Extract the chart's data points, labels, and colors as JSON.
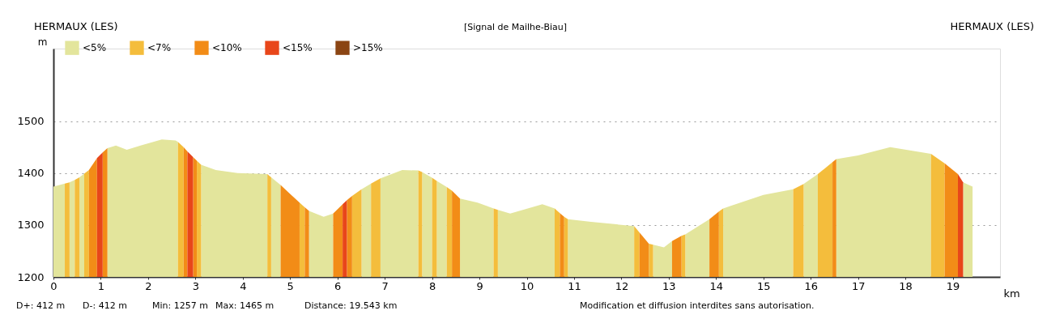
{
  "chart_data": {
    "type": "area",
    "title": "[Signal de Mailhe-Biau]",
    "xlabel": "km",
    "ylabel": "m",
    "xlim": [
      0,
      20
    ],
    "xticks": [
      0,
      1,
      2,
      3,
      4,
      5,
      6,
      7,
      8,
      9,
      10,
      11,
      12,
      13,
      14,
      15,
      16,
      17,
      18,
      19
    ],
    "ylim": [
      1200,
      1640
    ],
    "yticks": [
      1200,
      1300,
      1400,
      1500
    ],
    "grid": "y",
    "legend": "top left",
    "annotations": [
      "HERMAUX (LES)",
      "HERMAUX (LES)",
      "D+: 412 m",
      "D-: 412 m",
      "Min: 1257 m",
      "Max: 1465 m",
      "Distance: 19.543 km",
      "Modification et diffusion interdites sans autorisation."
    ],
    "series": [
      {
        "name": "<5%",
        "color": "#e3e59c",
        "x": [
          0,
          0.24,
          0.3,
          0.34,
          0.45,
          0.5,
          0.55,
          0.65,
          0.7,
          1.14,
          1.32,
          1.55,
          1.84,
          2.29,
          2.58,
          2.63,
          2.9,
          3.12,
          3.43,
          3.89,
          4.52,
          4.56,
          4.6,
          4.8,
          5.0,
          5.4,
          5.71,
          5.91,
          6.2,
          6.51,
          6.71,
          6.8,
          6.91,
          7.37,
          7.71,
          7.75,
          7.79,
          8.0,
          8.05,
          8.1,
          8.31,
          8.45,
          8.59,
          8.96,
          9.3,
          9.35,
          9.39,
          9.65,
          10.33,
          10.59,
          10.7,
          10.87,
          11.36,
          12.27,
          12.5,
          12.67,
          12.9,
          13.07,
          13.2,
          13.35,
          13.86,
          14.0,
          14.15,
          15.0,
          15.63,
          15.7,
          15.85,
          16.15,
          16.3,
          16.54,
          17.0,
          17.68,
          18.54,
          19.0,
          19.22,
          19.42
        ],
        "values": [
          1374,
          1380,
          null,
          1382,
          1387,
          null,
          1392,
          1399,
          null,
          1448,
          1453,
          1445,
          1453,
          1465,
          1463,
          1460,
          null,
          1416,
          1406,
          1400,
          1398,
          null,
          1392,
          1377,
          null,
          1327,
          1316,
          1322,
          null,
          1369,
          1380,
          null,
          1390,
          1406,
          1405,
          null,
          1402,
          1391,
          null,
          1385,
          1373,
          null,
          1351,
          1343,
          1332,
          null,
          1329,
          1322,
          1340,
          1332,
          null,
          1311,
          1306,
          1298,
          null,
          1262,
          1257,
          1269,
          null,
          1282,
          1311,
          null,
          1332,
          1358,
          1369,
          null,
          1379,
          1398,
          null,
          1427,
          1434,
          1450,
          1437,
          null,
          1382,
          1374
        ]
      },
      {
        "name": "<7%",
        "color": "#f4bd3c",
        "x": [
          0.24,
          0.34,
          0.4,
          0.45,
          0.55,
          0.6,
          0.65,
          0.75,
          1.5,
          2.63,
          2.75,
          2.9,
          3.03,
          3.12,
          4.0,
          4.52,
          4.6,
          5.0,
          5.2,
          5.31,
          6.0,
          6.31,
          6.51,
          6.6,
          6.71,
          6.91,
          7.5,
          7.71,
          7.79,
          7.9,
          8.0,
          8.1,
          8.2,
          8.31,
          8.42,
          9.0,
          9.3,
          9.39,
          10.0,
          10.59,
          10.7,
          10.75,
          10.79,
          10.87,
          12.0,
          12.27,
          12.38,
          12.5,
          12.58,
          12.67,
          13.0,
          13.27,
          13.35,
          13.7,
          14.06,
          14.15,
          15.0,
          15.63,
          15.85,
          16.0,
          16.15,
          16.46,
          17.0,
          18.54,
          18.83
        ],
        "values": [
          1380,
          1382,
          null,
          1387,
          1392,
          null,
          1399,
          1406,
          null,
          1460,
          1450,
          null,
          1424,
          1416,
          null,
          1398,
          1392,
          null,
          1343,
          1334,
          null,
          1356,
          1369,
          null,
          1380,
          1390,
          null,
          1405,
          1402,
          null,
          1391,
          1385,
          null,
          1373,
          1366,
          null,
          1332,
          1329,
          null,
          1332,
          1323,
          null,
          1316,
          1311,
          null,
          1298,
          1286,
          null,
          1264,
          1262,
          null,
          1279,
          1282,
          null,
          1326,
          1332,
          null,
          1369,
          1379,
          null,
          1398,
          1421,
          null,
          1437,
          1419
        ]
      },
      {
        "name": "<10%",
        "color": "#f28c17",
        "x": [
          0.75,
          0.92,
          1.0,
          1.04,
          1.14,
          2.0,
          2.75,
          2.83,
          2.9,
          2.95,
          3.03,
          4.0,
          4.8,
          5.0,
          5.2,
          5.25,
          5.31,
          5.4,
          5.6,
          5.91,
          6.11,
          6.15,
          6.2,
          6.31,
          8.0,
          8.42,
          8.59,
          10.0,
          10.7,
          10.79,
          12.0,
          12.38,
          12.58,
          12.8,
          13.07,
          13.27,
          13.5,
          13.86,
          14.06,
          15.0,
          16.46,
          16.54,
          17.0,
          18.83,
          19.11
        ],
        "values": [
          1406,
          1429,
          null,
          1440,
          1448,
          null,
          1450,
          1442,
          null,
          1431,
          1424,
          null,
          1377,
          1360,
          1343,
          null,
          1334,
          1327,
          null,
          1322,
          1340,
          null,
          1348,
          1356,
          null,
          1366,
          1351,
          null,
          1323,
          1316,
          null,
          1286,
          1264,
          null,
          1269,
          1279,
          null,
          1311,
          1326,
          null,
          1421,
          1427,
          null,
          1419,
          1398
        ]
      },
      {
        "name": "<15%",
        "color": "#e8461a",
        "x": [
          0.92,
          1.04,
          2.0,
          2.83,
          2.95,
          4.0,
          6.11,
          6.2,
          10.0,
          19.11,
          19.22
        ],
        "values": [
          1429,
          1440,
          null,
          1442,
          1431,
          null,
          1340,
          1348,
          null,
          1398,
          1382
        ]
      },
      {
        "name": ">15%",
        "color": "#8b4513"
      }
    ]
  }
}
